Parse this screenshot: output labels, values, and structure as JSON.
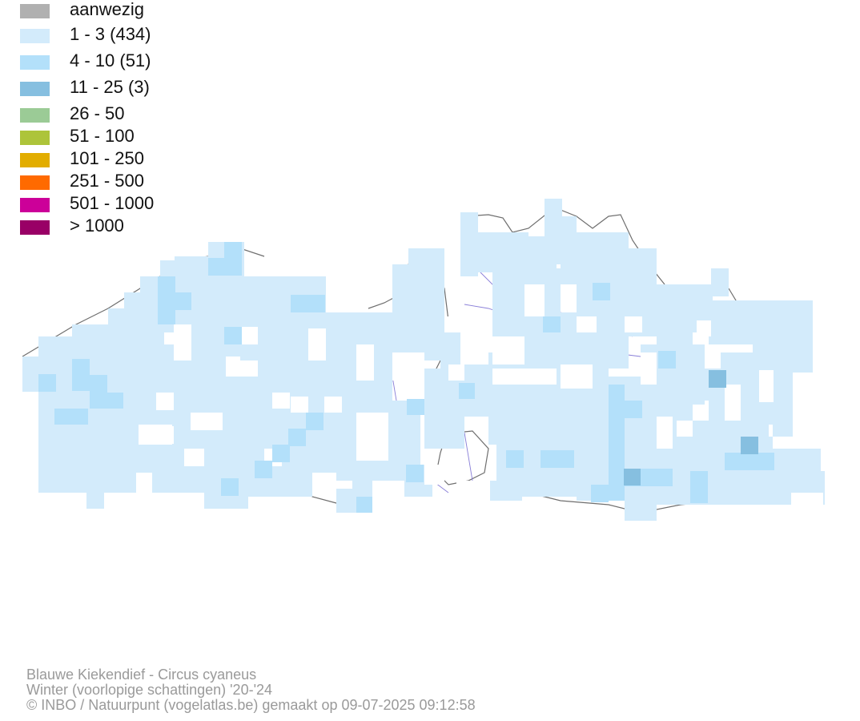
{
  "legend": {
    "items": [
      {
        "label": "aanwezig",
        "color": "#b0b0b0"
      },
      {
        "label": "1 - 3 (434)",
        "color": "#d3ebfb"
      },
      {
        "label": "4 - 10 (51)",
        "color": "#b3e0fa"
      },
      {
        "label": "11 - 25 (3)",
        "color": "#86bfe0"
      },
      {
        "label": "26 - 50",
        "color": "#9bcb96"
      },
      {
        "label": "51 - 100",
        "color": "#adc43a"
      },
      {
        "label": "101 - 250",
        "color": "#e2ad00"
      },
      {
        "label": "251 - 500",
        "color": "#ff6a00"
      },
      {
        "label": "501 - 1000",
        "color": "#cc0099"
      },
      {
        "label": "> 1000",
        "color": "#990066"
      }
    ]
  },
  "footer": {
    "species": "Blauwe Kiekendief - Circus cyaneus",
    "period": "Winter (voorlopige schattingen) '20-'24",
    "credit": "© INBO / Natuurpunt (vogelatlas.be) gemaakt op 09-07-2025 09:12:58"
  },
  "map": {
    "border_color": "#6e6e6e",
    "river_color": "#8a7fd8"
  }
}
